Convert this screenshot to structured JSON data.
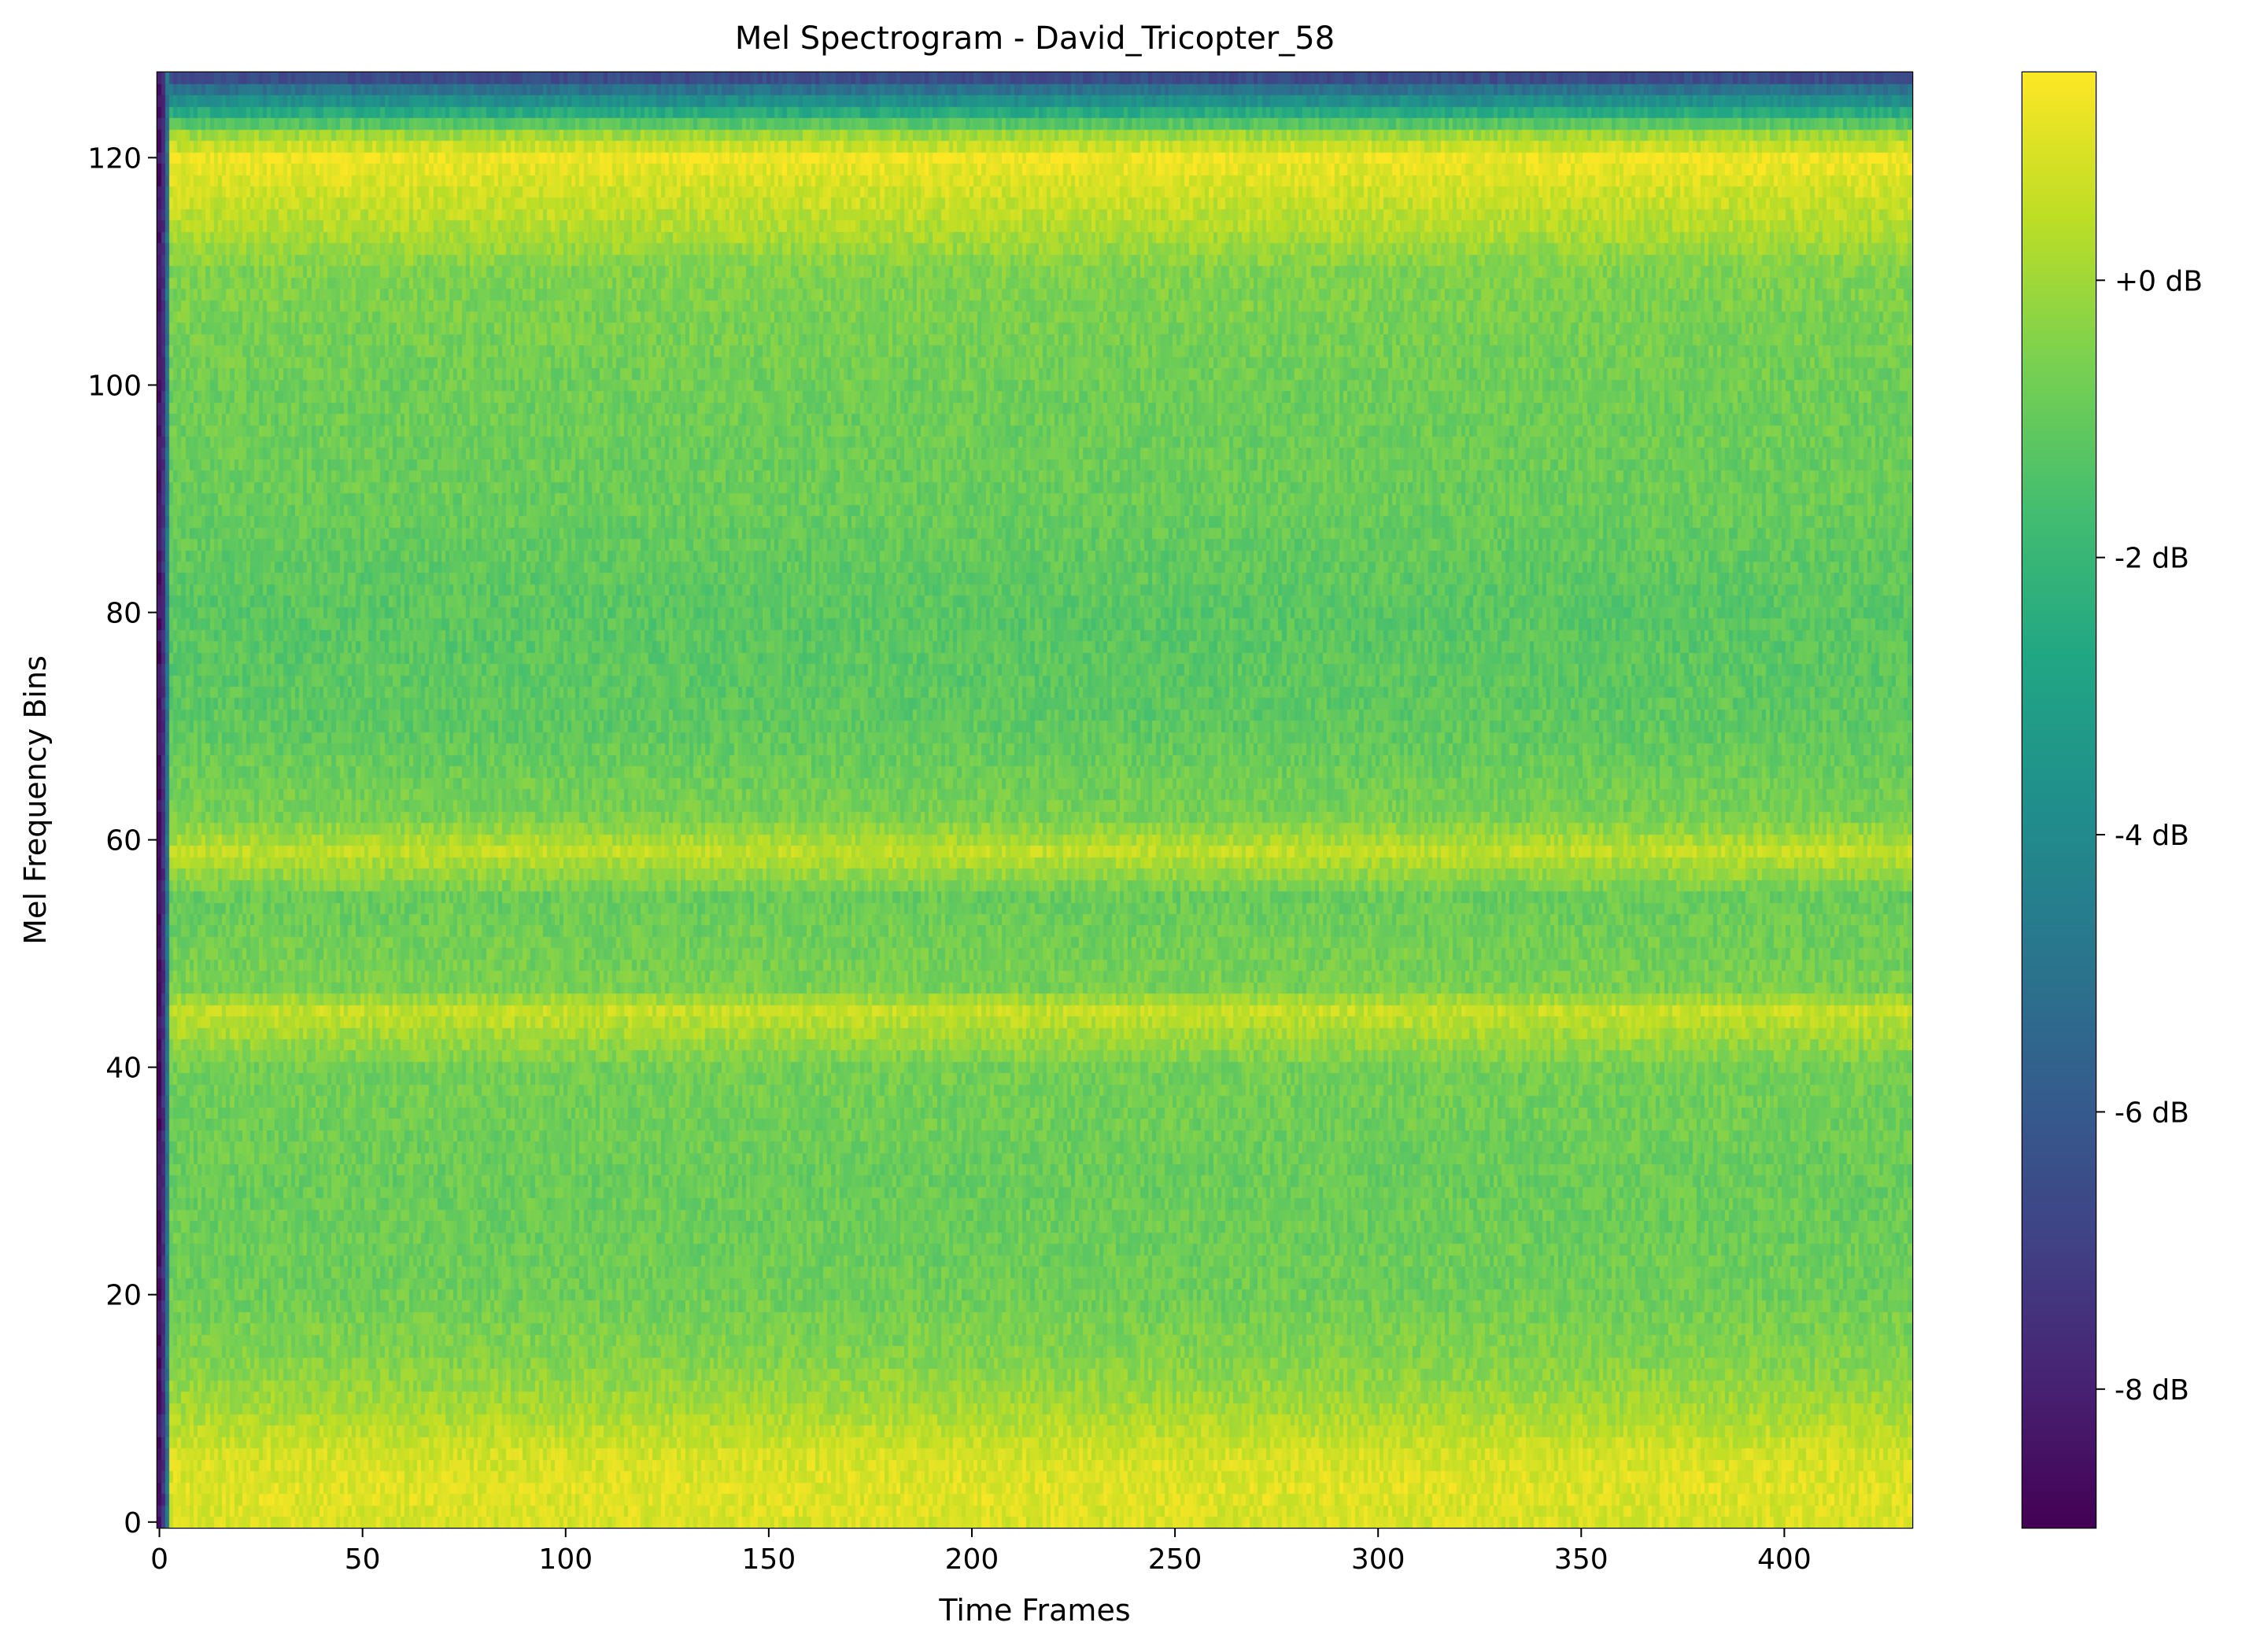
{
  "chart_data": {
    "type": "heatmap",
    "title": "Mel Spectrogram - David_Tricopter_58",
    "xlabel": "Time Frames",
    "ylabel": "Mel Frequency Bins",
    "xlim": [
      -0.5,
      431.5
    ],
    "ylim": [
      -0.5,
      127.5
    ],
    "n_time_frames": 432,
    "n_mel_bins": 128,
    "colormap": "viridis",
    "value_range_db": [
      -9,
      1.5
    ],
    "x_ticks": [
      0,
      50,
      100,
      150,
      200,
      250,
      300,
      350,
      400
    ],
    "x_tick_labels": [
      "0",
      "50",
      "100",
      "150",
      "200",
      "250",
      "300",
      "350",
      "400"
    ],
    "y_ticks": [
      0,
      20,
      40,
      60,
      80,
      100,
      120
    ],
    "y_tick_labels": [
      "0",
      "20",
      "40",
      "60",
      "80",
      "100",
      "120"
    ],
    "colorbar": {
      "ticks": [
        0,
        -2,
        -4,
        -6,
        -8
      ],
      "tick_labels": [
        "+0 dB",
        "-2 dB",
        "-4 dB",
        "-6 dB",
        "-8 dB"
      ]
    },
    "band_profile_db": [
      {
        "bin": 0,
        "db": 0.9
      },
      {
        "bin": 3,
        "db": 1.0
      },
      {
        "bin": 6,
        "db": 0.8
      },
      {
        "bin": 10,
        "db": 0.1
      },
      {
        "bin": 14,
        "db": -0.4
      },
      {
        "bin": 20,
        "db": -0.8
      },
      {
        "bin": 30,
        "db": -0.9
      },
      {
        "bin": 40,
        "db": -0.7
      },
      {
        "bin": 45,
        "db": 0.6
      },
      {
        "bin": 47,
        "db": -0.6
      },
      {
        "bin": 55,
        "db": -0.9
      },
      {
        "bin": 59,
        "db": 0.5
      },
      {
        "bin": 62,
        "db": -0.6
      },
      {
        "bin": 70,
        "db": -1.1
      },
      {
        "bin": 80,
        "db": -1.2
      },
      {
        "bin": 90,
        "db": -0.9
      },
      {
        "bin": 100,
        "db": -0.8
      },
      {
        "bin": 110,
        "db": -0.5
      },
      {
        "bin": 114,
        "db": 0.3
      },
      {
        "bin": 118,
        "db": 0.9
      },
      {
        "bin": 120,
        "db": 1.3
      },
      {
        "bin": 122,
        "db": 0.0
      },
      {
        "bin": 124,
        "db": -2.5
      },
      {
        "bin": 126,
        "db": -5.0
      },
      {
        "bin": 127,
        "db": -6.5
      }
    ],
    "onset_frames": {
      "frames": [
        0,
        1,
        2
      ],
      "db": [
        -8.5,
        -7.5,
        -5.0
      ]
    }
  }
}
